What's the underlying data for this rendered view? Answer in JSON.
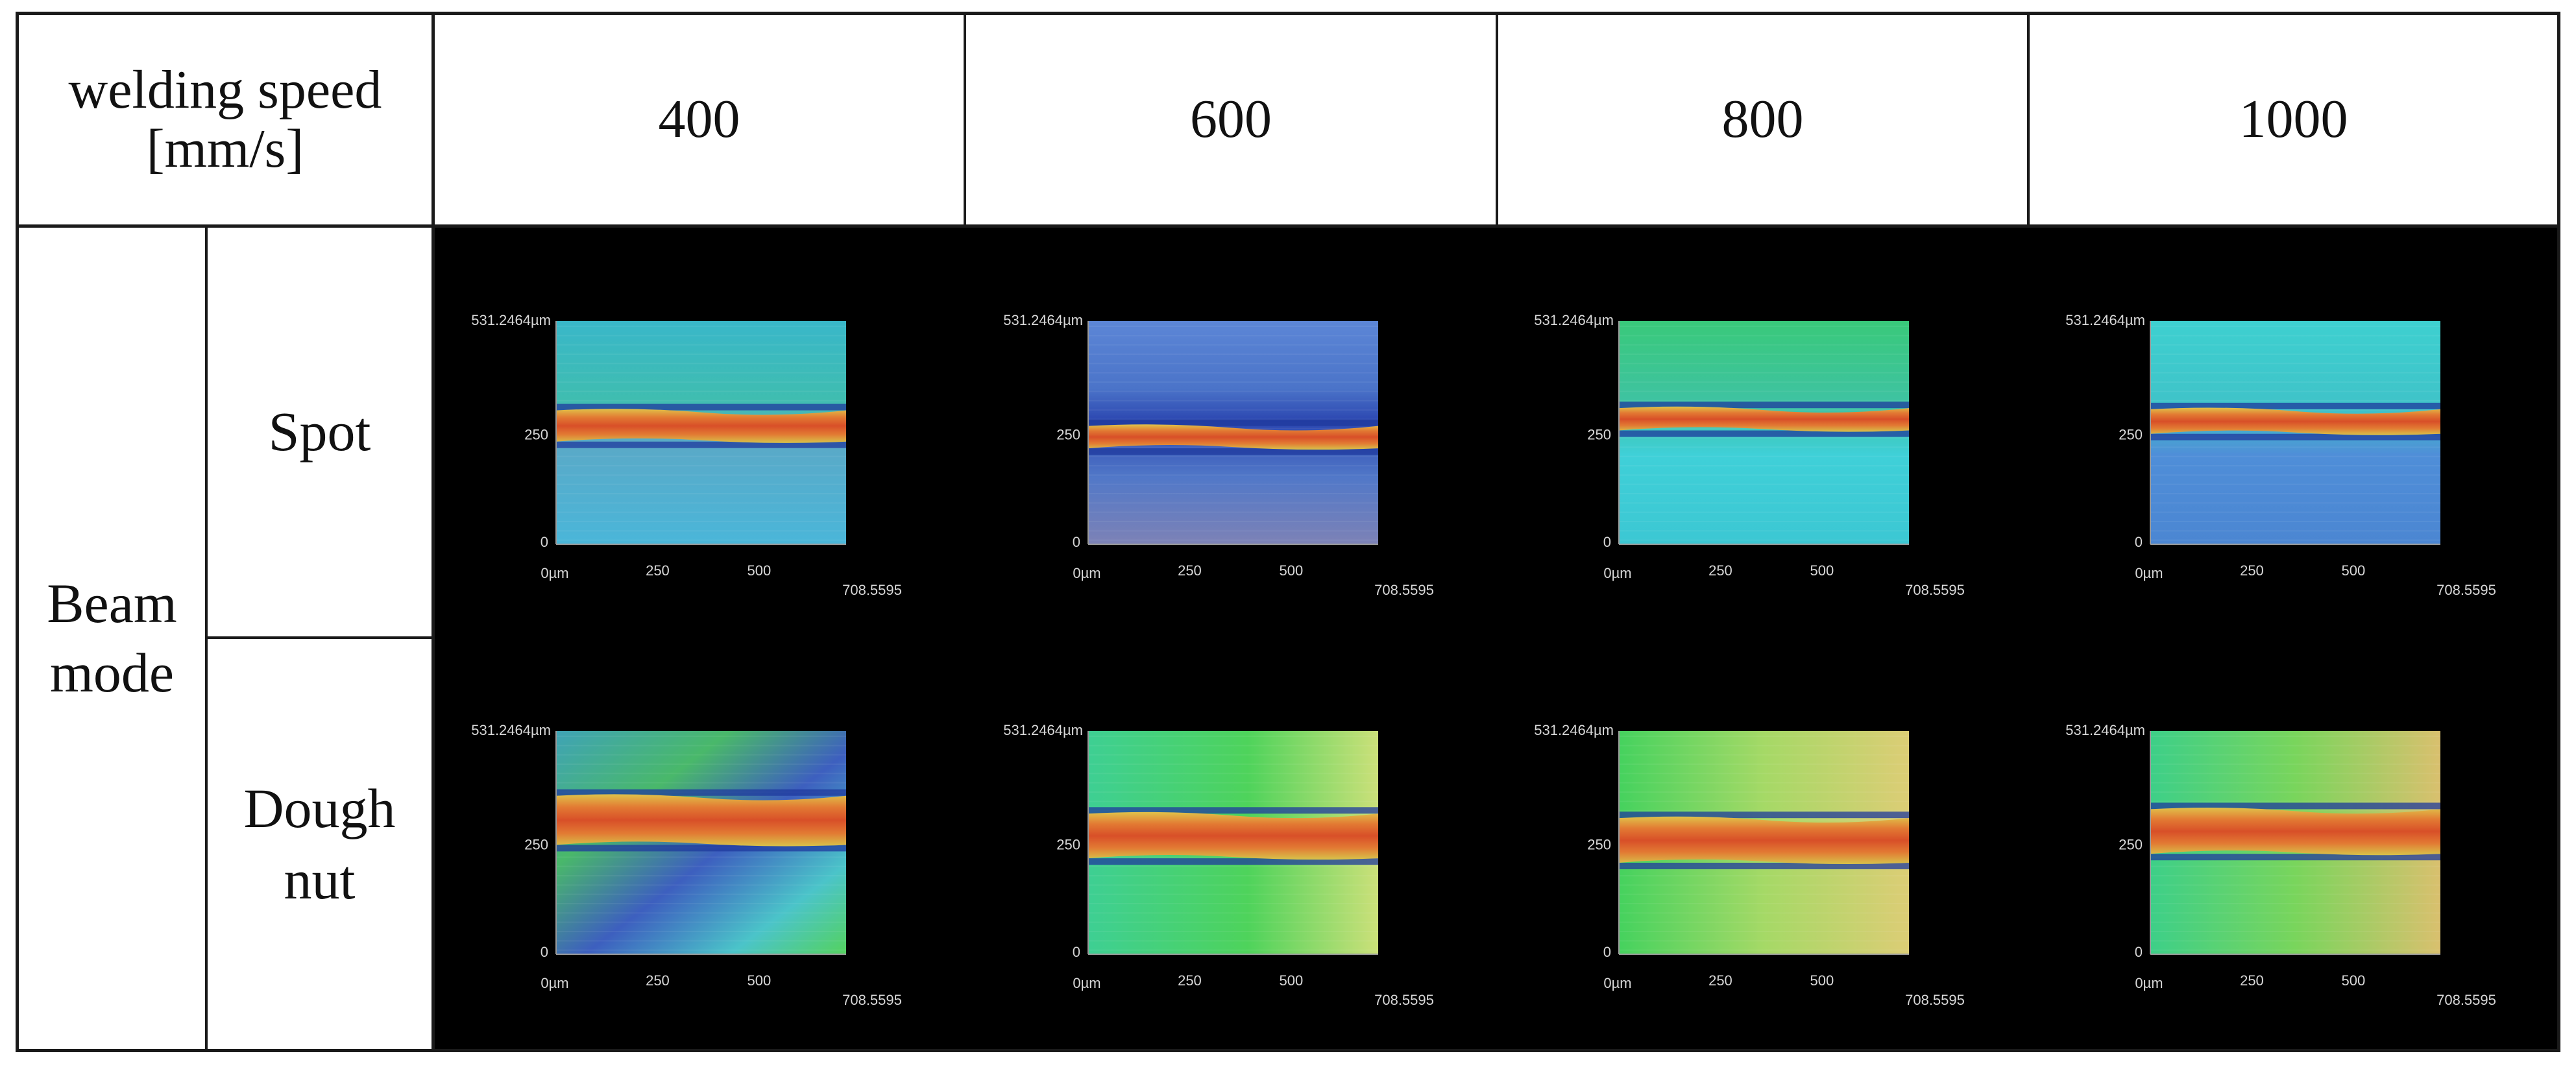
{
  "table": {
    "header_label": "welding speed\n[mm/s]",
    "speeds": [
      "400",
      "600",
      "800",
      "1000"
    ],
    "row_group_label": "Beam\nmode",
    "modes": [
      "Spot",
      "Dough\nnut"
    ]
  },
  "axis": {
    "y_top": "531.2464µm",
    "y_mid": "250",
    "y_zero": "0",
    "x_zero": "0µm",
    "x_250": "250",
    "x_500": "500",
    "x_end": "708.5595"
  },
  "colors": {
    "background_dark": "#000000",
    "grid_line": "#1a1a1a",
    "weld_bead": "#d2552a",
    "surface_blue": "#4a7fc8",
    "surface_cyan": "#3fc6cf",
    "surface_green": "#3ecb5a",
    "surface_yellow": "#d7cf6a"
  },
  "images": [
    {
      "mode": "Spot",
      "speed": "400",
      "colormap": "height-map-spot-400"
    },
    {
      "mode": "Spot",
      "speed": "600",
      "colormap": "height-map-spot-600"
    },
    {
      "mode": "Spot",
      "speed": "800",
      "colormap": "height-map-spot-800"
    },
    {
      "mode": "Spot",
      "speed": "1000",
      "colormap": "height-map-spot-1000"
    },
    {
      "mode": "Dough nut",
      "speed": "400",
      "colormap": "height-map-donut-400"
    },
    {
      "mode": "Dough nut",
      "speed": "600",
      "colormap": "height-map-donut-600"
    },
    {
      "mode": "Dough nut",
      "speed": "800",
      "colormap": "height-map-donut-800"
    },
    {
      "mode": "Dough nut",
      "speed": "1000",
      "colormap": "height-map-donut-1000"
    }
  ]
}
